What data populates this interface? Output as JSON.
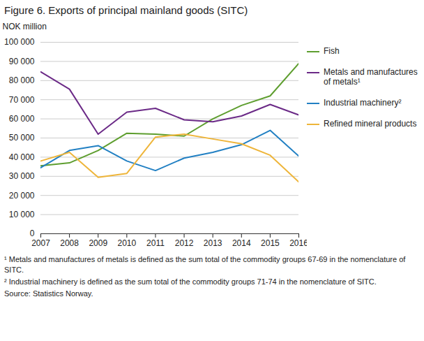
{
  "chart_data": {
    "type": "line",
    "title": "Figure 6. Exports of principal mainland goods (SITC)",
    "y_label": "NOK million",
    "x": [
      2007,
      2008,
      2009,
      2010,
      2011,
      2012,
      2013,
      2014,
      2015,
      2016
    ],
    "xlim": [
      2007,
      2016
    ],
    "xticks": [
      2007,
      2008,
      2009,
      2010,
      2011,
      2012,
      2013,
      2014,
      2015,
      2016
    ],
    "ylim": [
      0,
      100000
    ],
    "yticks": [
      0,
      {
        "value": 10000,
        "label": "10 000"
      },
      {
        "value": 20000,
        "label": "20 000"
      },
      {
        "value": 30000,
        "label": "30 000"
      },
      {
        "value": 40000,
        "label": "40 000"
      },
      {
        "value": 50000,
        "label": "50 000"
      },
      {
        "value": 60000,
        "label": "60 000"
      },
      {
        "value": 70000,
        "label": "70 000"
      },
      {
        "value": 80000,
        "label": "80 000"
      },
      {
        "value": 90000,
        "label": "90 000"
      },
      {
        "value": 100000,
        "label": "100 000"
      }
    ],
    "grid": true,
    "legend": "right",
    "series": [
      {
        "name": "Fish",
        "color": "#5e9e2f",
        "values": [
          35500,
          37000,
          43500,
          52500,
          52000,
          51000,
          60000,
          67000,
          72000,
          89000
        ]
      },
      {
        "name": "Metals and manufactures of metals¹",
        "color": "#6b2a87",
        "values": [
          84500,
          75500,
          52000,
          63500,
          65500,
          59500,
          58500,
          61500,
          67500,
          62000
        ]
      },
      {
        "name": "Industrial machinery²",
        "color": "#2280c3",
        "values": [
          34500,
          43500,
          46000,
          38000,
          33000,
          39500,
          42500,
          46500,
          54000,
          40500
        ]
      },
      {
        "name": "Refined mineral products",
        "color": "#eeb53a",
        "values": [
          38000,
          42500,
          29500,
          31500,
          50500,
          52000,
          49500,
          47000,
          41000,
          27000
        ]
      }
    ],
    "notes": [
      "¹ Metals and manufactures of metals is defined as the sum total of the commodity groups 67-69 in the nomenclature of SITC.",
      "² Industrial machinery is defined as the sum total of the commodity groups 71-74 in the nomenclature of SITC."
    ],
    "source": "Source: Statistics Norway."
  }
}
